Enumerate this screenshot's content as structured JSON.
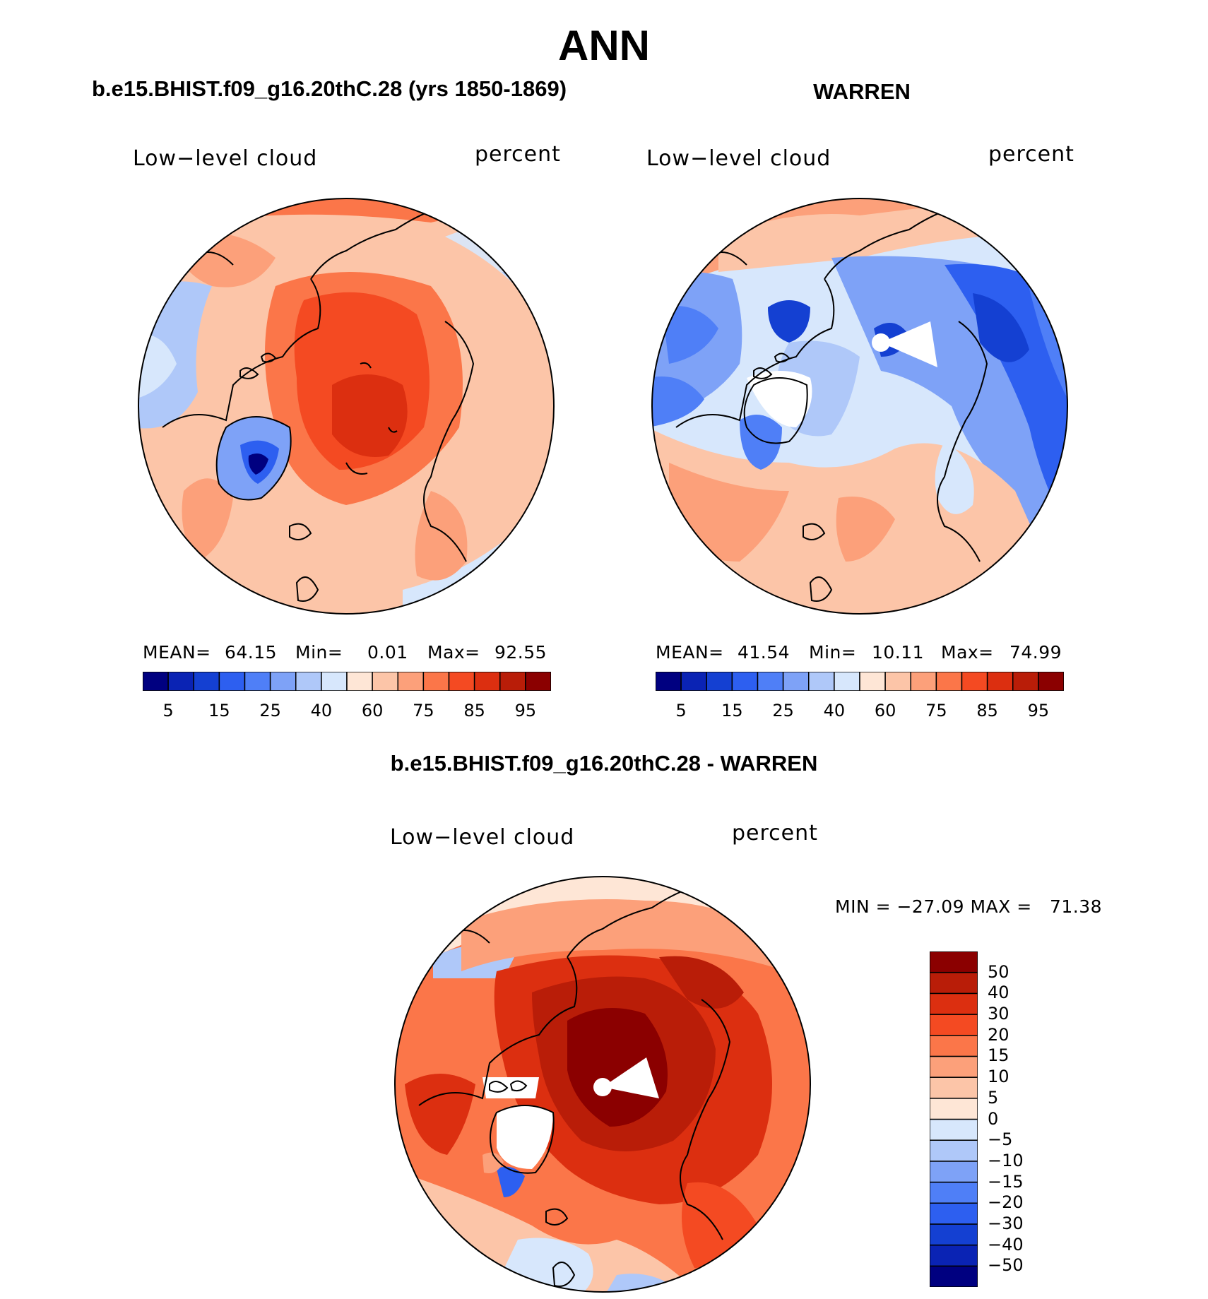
{
  "title": "ANN",
  "panels": {
    "left": {
      "case_title": "b.e15.BHIST.f09_g16.20thC.28 (yrs 1850-1869)",
      "variable": "Low−level cloud",
      "units": "percent",
      "mean_label": "MEAN=",
      "mean_value": "64.15",
      "min_label": "Min=",
      "min_value": "0.01",
      "max_label": "Max=",
      "max_value": "92.55"
    },
    "right": {
      "case_title": "WARREN",
      "variable": "Low−level cloud",
      "units": "percent",
      "mean_label": "MEAN=",
      "mean_value": "41.54",
      "min_label": "Min=",
      "min_value": "10.11",
      "max_label": "Max=",
      "max_value": "74.99"
    },
    "diff": {
      "case_title": "b.e15.BHIST.f09_g16.20thC.28 - WARREN",
      "variable": "Low−level cloud",
      "units": "percent",
      "minmax_text": "MIN = −27.09 MAX =   71.38"
    }
  },
  "colorbars": {
    "abs_colors": [
      "#000080",
      "#0a23b4",
      "#1440d2",
      "#2d5ff0",
      "#4f7ff7",
      "#7ea2f7",
      "#afc8f9",
      "#d7e7fc",
      "#fee6d6",
      "#fcc5a8",
      "#fca07a",
      "#fb7649",
      "#f44a22",
      "#dc2f10",
      "#b91d08",
      "#8b0000"
    ],
    "abs_ticks": [
      "5",
      "15",
      "25",
      "40",
      "60",
      "75",
      "85",
      "95"
    ],
    "diff_colors": [
      "#000080",
      "#0a23b4",
      "#1440d2",
      "#2d5ff0",
      "#4f7ff7",
      "#7ea2f7",
      "#afc8f9",
      "#d7e7fc",
      "#fee6d6",
      "#fcc5a8",
      "#fca07a",
      "#fb7649",
      "#f44a22",
      "#dc2f10",
      "#b91d08",
      "#8b0000"
    ],
    "diff_ticks": [
      "50",
      "40",
      "30",
      "20",
      "15",
      "10",
      "5",
      "0",
      "−5",
      "−10",
      "−15",
      "−20",
      "−30",
      "−40",
      "−50"
    ]
  }
}
